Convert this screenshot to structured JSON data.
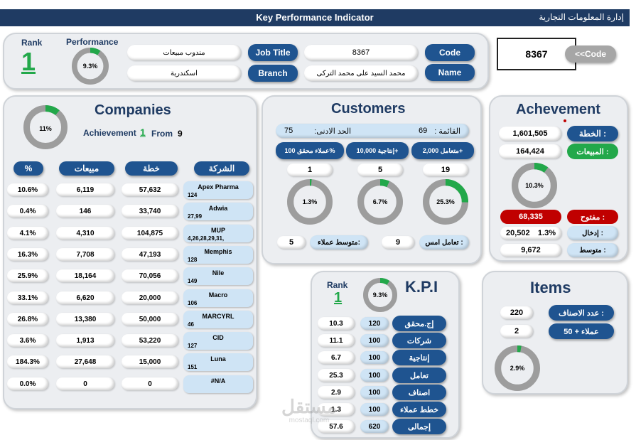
{
  "header": {
    "title": "Key Performance Indicator",
    "brand": "إدارة المعلومات التجارية"
  },
  "profile": {
    "rank_label": "Rank",
    "rank_value": "1",
    "performance_label": "Performance",
    "performance_pct": "9.3%",
    "performance_value": 0.093,
    "job_title_label": "Job Title",
    "job_title_value": "مندوب مبيعات",
    "branch_label": "Branch",
    "branch_value": "اسكندرية",
    "code_label": "Code",
    "code_value": "8367",
    "name_label": "Name",
    "name_value": "محمد السيد على محمد التركى"
  },
  "code_lookup": {
    "input_value": "8367",
    "button_label": "<<Code"
  },
  "companies": {
    "title": "Companies",
    "donut_pct": "11%",
    "donut_value": 0.11,
    "achievement_label": "Achievement",
    "achievement_value": "1",
    "from_label": "From",
    "from_value": "9",
    "headers": [
      "%",
      "مبيعات",
      "خطة",
      "الشركة"
    ],
    "rows": [
      {
        "pct": "10.6%",
        "sales": "6,119",
        "plan": "57,632",
        "name": "Apex Pharma",
        "codes": "124"
      },
      {
        "pct": "0.4%",
        "sales": "146",
        "plan": "33,740",
        "name": "Adwia",
        "codes": "27,99"
      },
      {
        "pct": "4.1%",
        "sales": "4,310",
        "plan": "104,875",
        "name": "MUP",
        "codes": "4,26,28,29,31,"
      },
      {
        "pct": "16.3%",
        "sales": "7,708",
        "plan": "47,193",
        "name": "Memphis",
        "codes": "128"
      },
      {
        "pct": "25.9%",
        "sales": "18,164",
        "plan": "70,056",
        "name": "Nile",
        "codes": "149"
      },
      {
        "pct": "33.1%",
        "sales": "6,620",
        "plan": "20,000",
        "name": "Macro",
        "codes": "106"
      },
      {
        "pct": "26.8%",
        "sales": "13,380",
        "plan": "50,000",
        "name": "MARCYRL",
        "codes": "46"
      },
      {
        "pct": "3.6%",
        "sales": "1,913",
        "plan": "53,220",
        "name": "CID",
        "codes": "127"
      },
      {
        "pct": "184.3%",
        "sales": "27,648",
        "plan": "15,000",
        "name": "Luna",
        "codes": "151"
      },
      {
        "pct": "0.0%",
        "sales": "0",
        "plan": "0",
        "name": "#N/A",
        "codes": ""
      }
    ]
  },
  "customers": {
    "title": "Customers",
    "list_label": "القائمة :",
    "list_value": "69",
    "min_label": "الحد الادنى:",
    "min_value": "75",
    "cols": [
      {
        "label": "عملاء محقق 100%",
        "value": "1",
        "pct": "1.3%",
        "frac": 0.013
      },
      {
        "label": "إنتاجية 10,000+",
        "value": "5",
        "pct": "6.7%",
        "frac": 0.067
      },
      {
        "label": "متعامل 2,000+",
        "value": "19",
        "pct": "25.3%",
        "frac": 0.253
      }
    ],
    "avg_label": "متوسط عملاء:",
    "avg_value": "5",
    "yesterday_label": "تعامل امس :",
    "yesterday_value": "9"
  },
  "achievement": {
    "title": "Achevement",
    "plan_label": "الخطة :",
    "plan_value": "1,601,505",
    "sales_label": "المبيعات :",
    "sales_value": "164,424",
    "donut_pct": "10.3%",
    "donut_value": 0.103,
    "open_label": "مفتوح :",
    "open_value": "68,335",
    "entry_label": "إدخال :",
    "entry_value": "20,502",
    "entry_pct": "1.3%",
    "avg_label": "متوسط :",
    "avg_value": "9,672"
  },
  "kpi": {
    "rank_label": "Rank",
    "rank_value": "1",
    "title": "K.P.I",
    "donut_pct": "9.3%",
    "donut_value": 0.093,
    "rows": [
      {
        "label": "إج.محقق",
        "target": "120",
        "actual": "10.3"
      },
      {
        "label": "شركات",
        "target": "100",
        "actual": "11.1"
      },
      {
        "label": "إنتاجية",
        "target": "100",
        "actual": "6.7"
      },
      {
        "label": "تعامل",
        "target": "100",
        "actual": "25.3"
      },
      {
        "label": "اصناف",
        "target": "100",
        "actual": "2.9"
      },
      {
        "label": "خطط عملاء",
        "target": "100",
        "actual": "1.3"
      },
      {
        "label": "إجمالى",
        "target": "620",
        "actual": "57.6"
      }
    ]
  },
  "items": {
    "title": "Items",
    "count_label": "عدد الاصناف :",
    "count_value": "220",
    "clients50_label": "عملاء + 50",
    "clients50_value": "2",
    "donut_pct": "2.9%",
    "donut_value": 0.029
  },
  "watermark": {
    "text": "مستقل",
    "sub": "mostaql.com"
  },
  "colors": {
    "navy": "#1f3b63",
    "blue_button": "#1f5490",
    "green": "#22a84a",
    "red": "#c00000",
    "gray_ring": "#9d9d9d"
  }
}
